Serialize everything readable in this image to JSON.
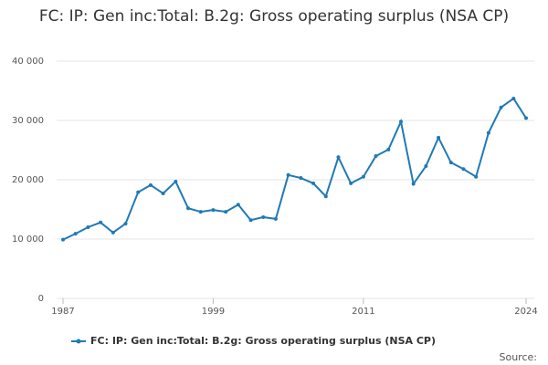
{
  "chart_data": {
    "type": "line",
    "title": "FC: IP: Gen inc:Total: B.2g: Gross operating surplus (NSA CP)",
    "x": [
      1987,
      1988,
      1989,
      1990,
      1991,
      1992,
      1993,
      1994,
      1995,
      1996,
      1997,
      1998,
      1999,
      2000,
      2001,
      2002,
      2003,
      2004,
      2005,
      2006,
      2007,
      2008,
      2009,
      2010,
      2011,
      2012,
      2013,
      2014,
      2015,
      2016,
      2017,
      2018,
      2019,
      2020,
      2021,
      2022,
      2023,
      2024
    ],
    "series": [
      {
        "name": "FC: IP: Gen inc:Total: B.2g: Gross operating surplus (NSA CP)",
        "color": "#1f7ab5",
        "values": [
          9900,
          10900,
          12000,
          12800,
          11100,
          12600,
          17900,
          19100,
          17700,
          19700,
          15200,
          14600,
          14900,
          14600,
          15800,
          13200,
          13700,
          13400,
          20800,
          20300,
          19400,
          17200,
          23800,
          19400,
          20500,
          24000,
          25100,
          29800,
          19300,
          22300,
          27100,
          22900,
          21800,
          20500,
          27900,
          32200,
          33700,
          30400
        ]
      }
    ],
    "xlim": [
      1987,
      2024
    ],
    "xticks": [
      1987,
      1999,
      2011,
      2024
    ],
    "ylim": [
      0,
      40000
    ],
    "yticks": [
      0,
      {
        "value": 10000,
        "label": "10 000"
      },
      {
        "value": 20000,
        "label": "20 000"
      },
      {
        "value": 30000,
        "label": "30 000"
      },
      {
        "value": 40000,
        "label": "40 000"
      }
    ],
    "grid": true,
    "legend": "bottom",
    "source": "Source:"
  }
}
